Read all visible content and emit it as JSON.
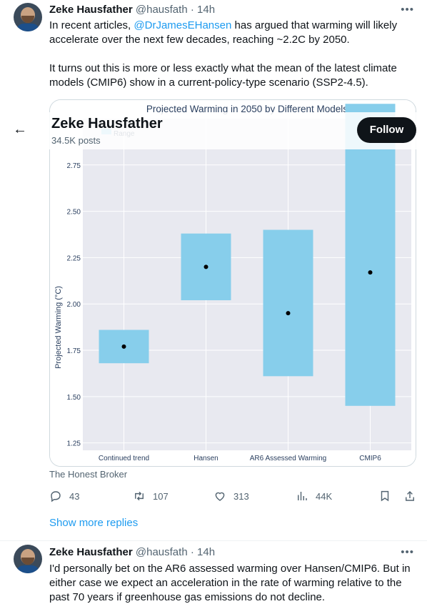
{
  "tweet1": {
    "author_name": "Zeke Hausfather",
    "handle": "@hausfath",
    "separator": "·",
    "time": "14h",
    "more_glyph": "•••",
    "text_p1_before": "In recent articles, ",
    "mention": "@DrJamesEHansen",
    "text_p1_after": " has argued that warming will likely accelerate over the next few decades, reaching ~2.2C by 2050.",
    "text_p2": "It turns out this is more or less exactly what the mean of the latest climate models (CMIP6) show in a current-policy-type scenario (SSP2-4.5).",
    "card_source": "The Honest Broker",
    "stats": {
      "replies": "43",
      "reposts": "107",
      "likes": "313",
      "views": "44K"
    }
  },
  "profile_overlay": {
    "back_icon": "←",
    "name": "Zeke Hausfather",
    "posts": "34.5K posts",
    "follow_label": "Follow"
  },
  "show_more_replies": "Show more replies",
  "tweet2": {
    "author_name": "Zeke Hausfather",
    "handle": "@hausfath",
    "separator": "·",
    "time": "14h",
    "more_glyph": "•••",
    "text": "I'd personally bet on the AR6 assessed warming over Hansen/CMIP6. But in either case we expect an acceleration in the rate of warming relative to the past 70 years if greenhouse gas emissions do not decline."
  },
  "icons": {
    "reply": "reply-icon",
    "repost": "repost-icon",
    "like": "heart-icon",
    "views": "views-icon",
    "bookmark": "bookmark-icon",
    "share": "share-icon"
  },
  "colors": {
    "accent": "#1d9bf0",
    "range_fill": "#87ceeb",
    "plot_bg": "#e8e9f0"
  },
  "chart_data": {
    "type": "bar",
    "title": "Projected Warming in 2050 by Different Models",
    "legend_label": "Range",
    "ylabel": "Projected Warming (°C)",
    "xlabel": "",
    "categories": [
      "Continued trend",
      "Hansen",
      "AR6 Assessed Warming",
      "CMIP6"
    ],
    "ranges": [
      [
        1.68,
        1.86
      ],
      [
        2.02,
        2.38
      ],
      [
        1.61,
        2.4
      ],
      [
        1.45,
        3.08
      ]
    ],
    "means": [
      1.77,
      2.2,
      1.95,
      2.17
    ],
    "yticks": [
      "1.25",
      "1.50",
      "1.75",
      "2.00",
      "2.25",
      "2.50",
      "2.75"
    ],
    "ylim": [
      1.21,
      3.0
    ],
    "grid": true,
    "legend_position": "top-left"
  }
}
